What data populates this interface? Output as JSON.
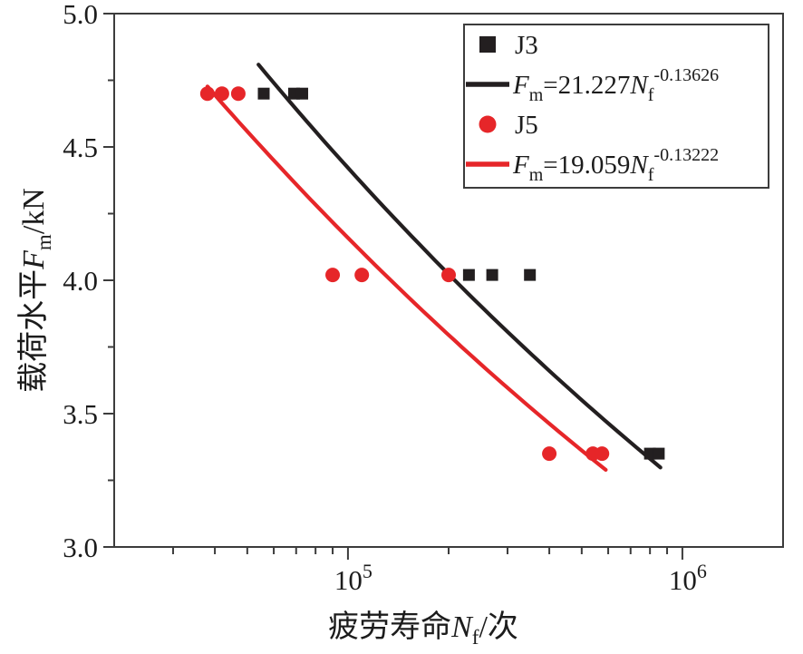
{
  "colors": {
    "series_j3": "#231f20",
    "series_j5": "#e62629",
    "axis": "#3c3c3c",
    "text": "#1c1c1c",
    "background": "#ffffff"
  },
  "chart_data": {
    "type": "scatter",
    "title": "",
    "x_scale": "log",
    "grid": false,
    "xlim": [
      20000,
      2000000
    ],
    "ylim": [
      3.0,
      5.0
    ],
    "xlabel": {
      "prefix": "疲劳寿命",
      "variable": "N",
      "subscript": "f",
      "suffix": "/次"
    },
    "ylabel": {
      "prefix": "载荷水平",
      "variable": "F",
      "subscript": "m",
      "suffix": "/kN"
    },
    "y_major_ticks": [
      5.0,
      4.5,
      4.0,
      3.5,
      3.0
    ],
    "y_major_tick_labels": [
      "5.0",
      "4.5",
      "4.0",
      "3.5",
      "3.0"
    ],
    "y_minor_ticks": [
      4.75,
      4.25,
      3.75,
      3.25
    ],
    "x_major_ticks": [
      {
        "value": 100000,
        "base": "10",
        "exp": "5"
      },
      {
        "value": 1000000,
        "base": "10",
        "exp": "6"
      }
    ],
    "x_minor_decades": [
      10000,
      100000,
      1000000
    ],
    "series": [
      {
        "name": "J3",
        "marker": "square",
        "color": "#231f20",
        "points": [
          [
            56000,
            4.7
          ],
          [
            69000,
            4.7
          ],
          [
            73000,
            4.7
          ],
          [
            230000,
            4.02
          ],
          [
            270000,
            4.02
          ],
          [
            350000,
            4.02
          ],
          [
            800000,
            3.35
          ],
          [
            850000,
            3.35
          ]
        ]
      },
      {
        "name": "J5",
        "marker": "circle",
        "color": "#e62629",
        "points": [
          [
            38000,
            4.7
          ],
          [
            42000,
            4.7
          ],
          [
            47000,
            4.7
          ],
          [
            90000,
            4.02
          ],
          [
            110000,
            4.02
          ],
          [
            200000,
            4.02
          ],
          [
            400000,
            3.35
          ],
          [
            540000,
            3.35
          ],
          [
            575000,
            3.35
          ]
        ]
      }
    ],
    "fits": [
      {
        "series": "J3",
        "color": "#231f20",
        "coefficient": 21.227,
        "exponent": -0.13626,
        "equation_text": "Fm=21.227Nf^-0.13626",
        "range": [
          54000,
          860000
        ]
      },
      {
        "series": "J5",
        "color": "#e62629",
        "coefficient": 19.059,
        "exponent": -0.13222,
        "equation_text": "Fm=19.059Nf^-0.13222",
        "range": [
          38000,
          590000
        ]
      }
    ],
    "legend_position": "top-right"
  },
  "legend": {
    "items": [
      {
        "kind": "marker",
        "series": "J3",
        "marker": "square",
        "color": "#231f20",
        "label": "J3"
      },
      {
        "kind": "line",
        "series": "J3",
        "color": "#231f20",
        "eq": {
          "lhs": "F",
          "lhs_sub": "m",
          "mid": "=21.227",
          "rhs": "N",
          "rhs_sub": "f",
          "exp": "-0.13626"
        }
      },
      {
        "kind": "marker",
        "series": "J5",
        "marker": "circle",
        "color": "#e62629",
        "label": "J5"
      },
      {
        "kind": "line",
        "series": "J5",
        "color": "#e62629",
        "eq": {
          "lhs": "F",
          "lhs_sub": "m",
          "mid": "=19.059",
          "rhs": "N",
          "rhs_sub": "f",
          "exp": "-0.13222"
        }
      }
    ]
  }
}
